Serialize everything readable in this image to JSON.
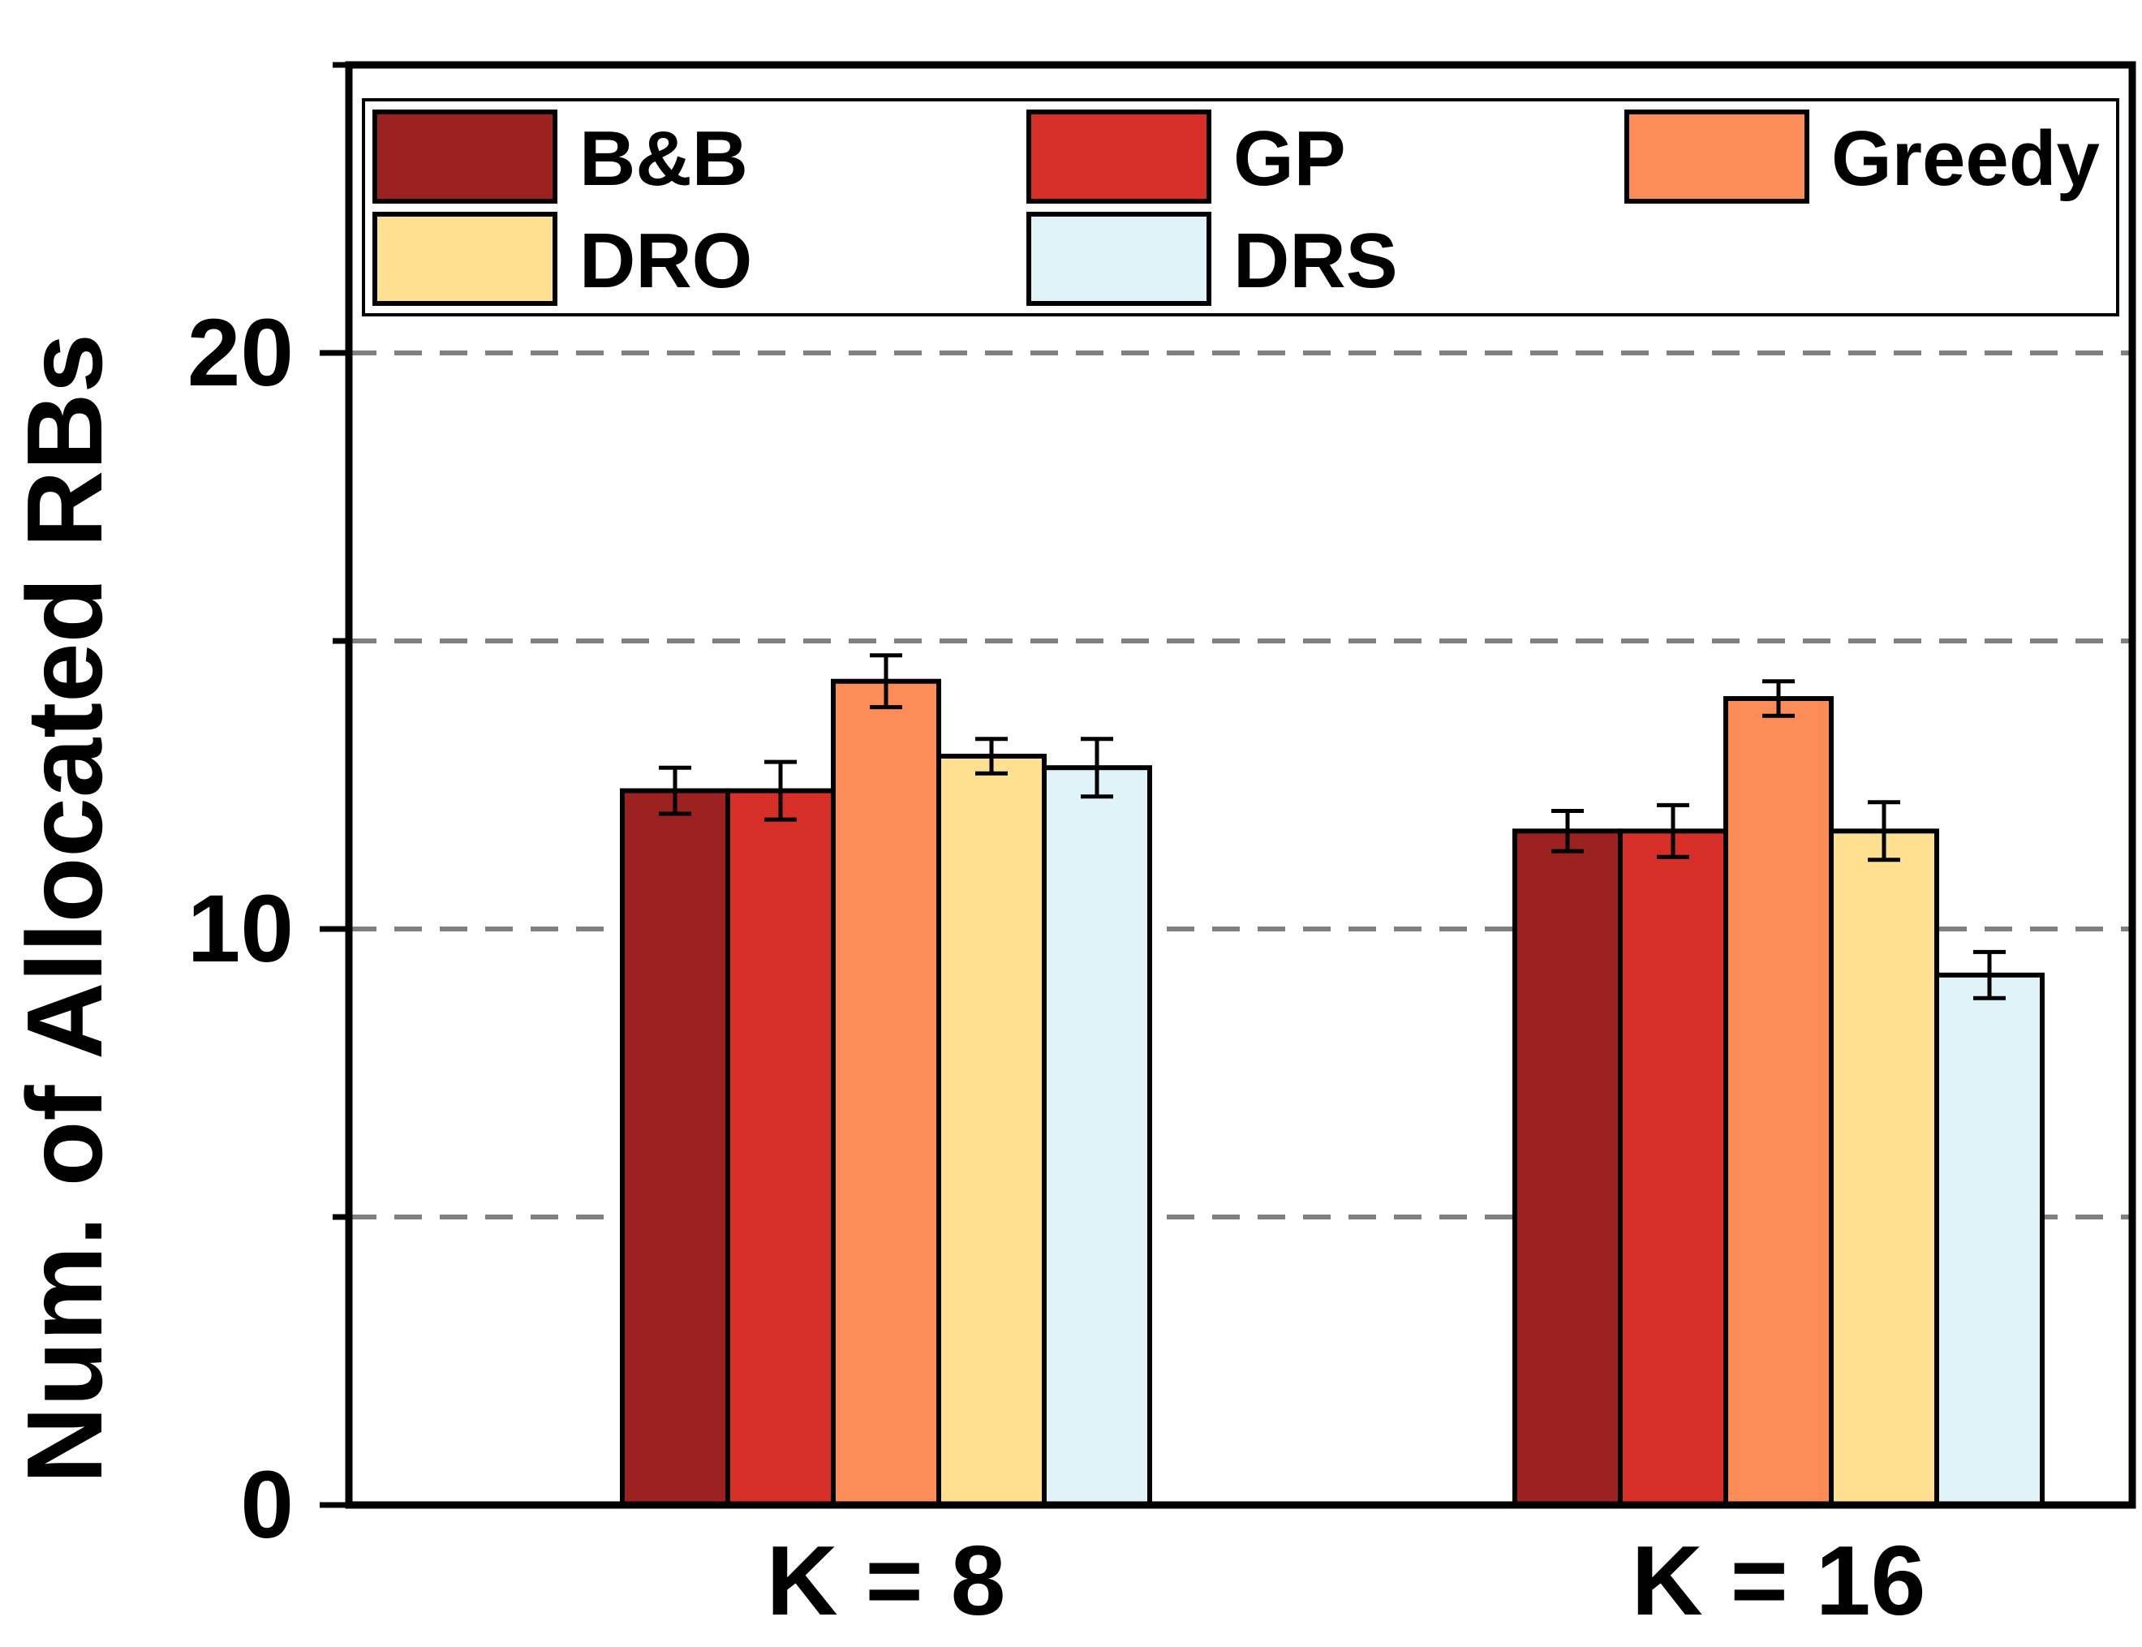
{
  "chart_data": {
    "type": "bar",
    "title": "",
    "xlabel": "",
    "ylabel": "Num. of Allocated RBs",
    "ylim": [
      0,
      25
    ],
    "yticks": [
      0,
      10,
      20
    ],
    "gridlines": [
      5,
      10,
      15,
      20
    ],
    "grid": "dashed horizontal",
    "categories": [
      "K = 8",
      "K = 16"
    ],
    "series": [
      {
        "name": "B&B",
        "color": "#9B2220",
        "values": [
          12.4,
          11.7
        ],
        "errors": [
          0.4,
          0.35
        ]
      },
      {
        "name": "GP",
        "color": "#D62F27",
        "values": [
          12.4,
          11.7
        ],
        "errors": [
          0.5,
          0.45
        ]
      },
      {
        "name": "Greedy",
        "color": "#FC8D59",
        "values": [
          14.3,
          14.0
        ],
        "errors": [
          0.45,
          0.3
        ]
      },
      {
        "name": "DRO",
        "color": "#FEE090",
        "values": [
          13.0,
          11.7
        ],
        "errors": [
          0.3,
          0.5
        ]
      },
      {
        "name": "DRS",
        "color": "#E0F3F8",
        "values": [
          12.8,
          9.2
        ],
        "errors": [
          0.5,
          0.4
        ]
      }
    ],
    "legend": {
      "placement": "top",
      "columns": 3
    }
  }
}
